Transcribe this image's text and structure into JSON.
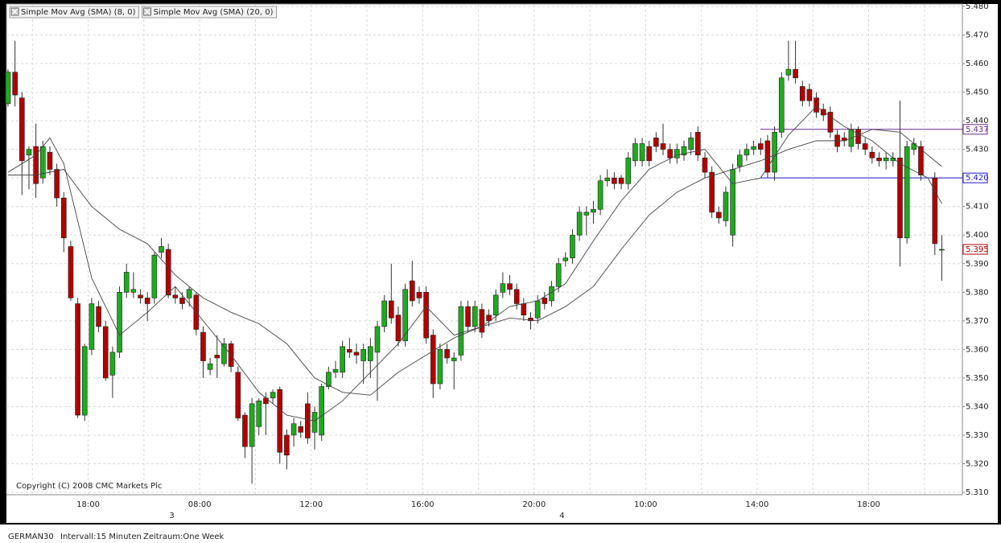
{
  "chart_data": {
    "type": "candlestick",
    "categories": [
      null,
      null,
      null,
      null,
      null,
      null,
      null,
      null,
      null,
      null,
      null,
      null,
      "18:00",
      null,
      null,
      null,
      null,
      null,
      null,
      null,
      null,
      null,
      null,
      null,
      null,
      null,
      null,
      null,
      "08:00",
      null,
      null,
      null,
      null,
      null,
      null,
      null,
      null,
      null,
      null,
      null,
      null,
      null,
      null,
      null,
      "12:00",
      null,
      null,
      null,
      null,
      null,
      null,
      null,
      null,
      null,
      null,
      null,
      null,
      null,
      null,
      null,
      "16:00",
      null,
      null,
      null,
      null,
      null,
      null,
      null,
      null,
      null,
      null,
      null,
      null,
      null,
      null,
      null,
      "20:00",
      null,
      null,
      null,
      null,
      null,
      null,
      null,
      null,
      null,
      null,
      null,
      null,
      null,
      null,
      null,
      "10:00",
      null,
      null,
      null,
      null,
      null,
      null,
      null,
      null,
      null,
      null,
      null,
      null,
      null,
      null,
      null,
      "14:00",
      null,
      null,
      null,
      null,
      null,
      null,
      null,
      null,
      null,
      null,
      null,
      null,
      null,
      null,
      null,
      "18:00",
      null,
      null,
      null,
      null,
      null,
      null,
      null,
      null,
      null,
      null
    ],
    "day_labels": [
      null,
      null,
      null,
      null,
      null,
      null,
      null,
      null,
      null,
      null,
      null,
      null,
      null,
      null,
      null,
      null,
      null,
      null,
      null,
      null,
      null,
      null,
      null,
      null,
      "3",
      null,
      null,
      null,
      null,
      null,
      null,
      null,
      null,
      null,
      null,
      null,
      null,
      null,
      null,
      null,
      null,
      null,
      null,
      null,
      null,
      null,
      null,
      null,
      null,
      null,
      null,
      null,
      null,
      null,
      null,
      null,
      null,
      null,
      null,
      null,
      null,
      null,
      null,
      null,
      null,
      null,
      null,
      null,
      null,
      null,
      null,
      null,
      null,
      null,
      null,
      null,
      null,
      null,
      null,
      null,
      "4",
      null,
      null,
      null,
      null,
      null,
      null,
      null,
      null,
      null,
      null,
      null,
      null,
      null,
      null,
      null,
      null,
      null,
      null,
      null,
      null,
      null,
      null,
      null,
      null,
      null,
      null,
      null,
      null,
      null,
      null,
      null,
      null,
      null,
      null,
      null,
      null,
      null,
      null,
      null,
      null,
      null,
      null,
      null,
      null,
      null,
      null,
      null,
      null,
      null,
      null,
      null,
      null,
      null
    ],
    "open": [
      5.446,
      5.457,
      5.448,
      5.428,
      5.431,
      5.42,
      5.429,
      5.423,
      5.413,
      5.396,
      5.376,
      5.337,
      5.36,
      5.375,
      5.368,
      5.351,
      5.359,
      5.38,
      5.38,
      5.379,
      5.378,
      5.378,
      5.394,
      5.395,
      5.379,
      5.378,
      5.378,
      5.379,
      5.366,
      5.353,
      5.358,
      5.355,
      5.362,
      5.352,
      5.337,
      5.326,
      5.333,
      5.343,
      5.343,
      5.346,
      5.33,
      5.33,
      5.333,
      5.341,
      5.331,
      5.33,
      5.347,
      5.352,
      5.352,
      5.36,
      5.359,
      5.356,
      5.356,
      5.359,
      5.368,
      5.377,
      5.372,
      5.363,
      5.384,
      5.38,
      5.38,
      5.365,
      5.348,
      5.36,
      5.356,
      5.358,
      5.375,
      5.368,
      5.374,
      5.372,
      5.372,
      5.38,
      5.383,
      5.381,
      5.376,
      5.371,
      5.371,
      5.378,
      5.377,
      5.382,
      5.391,
      5.392,
      5.4,
      5.407,
      5.408,
      5.409,
      5.419,
      5.42,
      5.42,
      5.418,
      5.426,
      5.426,
      5.431,
      5.434,
      5.432,
      5.43,
      5.427,
      5.428,
      5.43,
      5.436,
      5.427,
      5.422,
      5.408,
      5.405,
      5.4,
      5.424,
      5.428,
      5.43,
      5.432,
      5.433,
      5.422,
      5.436,
      5.456,
      5.458,
      5.452,
      5.451,
      5.448,
      5.444,
      5.443,
      5.435,
      5.434,
      5.431,
      5.437,
      5.432,
      5.429,
      5.427,
      5.426,
      5.426,
      5.427,
      5.399,
      5.43,
      5.431,
      null,
      5.42,
      5.395
    ],
    "high": [
      5.458,
      5.468,
      5.45,
      5.431,
      5.439,
      5.433,
      5.431,
      5.425,
      5.415,
      5.398,
      5.378,
      5.362,
      5.378,
      5.377,
      5.37,
      5.361,
      5.382,
      5.39,
      5.387,
      5.381,
      5.38,
      5.394,
      5.399,
      5.397,
      5.382,
      5.38,
      5.382,
      5.38,
      5.368,
      5.357,
      5.365,
      5.364,
      5.363,
      5.354,
      5.338,
      5.343,
      5.343,
      5.345,
      5.346,
      5.347,
      5.332,
      5.336,
      5.335,
      5.345,
      5.34,
      5.348,
      5.354,
      5.356,
      5.363,
      5.364,
      5.362,
      5.362,
      5.364,
      5.37,
      5.379,
      5.39,
      5.375,
      5.383,
      5.391,
      5.382,
      5.382,
      5.367,
      5.362,
      5.362,
      5.359,
      5.377,
      5.377,
      5.377,
      5.376,
      5.374,
      5.381,
      5.387,
      5.386,
      5.383,
      5.378,
      5.373,
      5.379,
      5.38,
      5.384,
      5.392,
      5.394,
      5.402,
      5.41,
      5.41,
      5.412,
      5.421,
      5.423,
      5.422,
      5.421,
      5.429,
      5.434,
      5.434,
      5.433,
      5.436,
      5.439,
      5.432,
      5.432,
      5.433,
      5.436,
      5.438,
      5.429,
      5.424,
      5.41,
      5.417,
      5.425,
      5.43,
      5.432,
      5.433,
      5.434,
      5.435,
      5.438,
      5.457,
      5.468,
      5.468,
      5.454,
      5.453,
      5.45,
      5.446,
      5.445,
      5.437,
      5.436,
      5.439,
      5.438,
      5.434,
      5.431,
      5.429,
      5.429,
      5.429,
      5.447,
      5.433,
      5.434,
      5.433,
      null,
      5.422,
      5.4
    ],
    "low": [
      5.445,
      5.445,
      5.414,
      5.416,
      5.413,
      5.418,
      5.421,
      5.41,
      5.394,
      5.377,
      5.336,
      5.335,
      5.358,
      5.366,
      5.349,
      5.343,
      5.357,
      5.378,
      5.378,
      5.376,
      5.37,
      5.376,
      5.392,
      5.378,
      5.376,
      5.374,
      5.375,
      5.365,
      5.35,
      5.351,
      5.35,
      5.354,
      5.352,
      5.335,
      5.322,
      5.313,
      5.33,
      5.33,
      5.341,
      5.32,
      5.318,
      5.326,
      5.329,
      5.327,
      5.325,
      5.328,
      5.346,
      5.35,
      5.35,
      5.357,
      5.355,
      5.348,
      5.35,
      5.342,
      5.366,
      5.369,
      5.361,
      5.361,
      5.375,
      5.376,
      5.362,
      5.343,
      5.346,
      5.355,
      5.346,
      5.356,
      5.366,
      5.366,
      5.364,
      5.368,
      5.37,
      5.378,
      5.379,
      5.374,
      5.37,
      5.367,
      5.369,
      5.374,
      5.375,
      5.38,
      5.389,
      5.39,
      5.398,
      5.4,
      5.404,
      5.407,
      5.417,
      5.416,
      5.416,
      5.416,
      5.424,
      5.424,
      5.424,
      5.429,
      5.428,
      5.425,
      5.425,
      5.426,
      5.428,
      5.426,
      5.42,
      5.406,
      5.404,
      5.403,
      5.396,
      5.422,
      5.426,
      5.428,
      5.428,
      5.42,
      5.419,
      5.434,
      5.454,
      5.453,
      5.445,
      5.445,
      5.441,
      5.44,
      5.434,
      5.429,
      5.431,
      5.429,
      5.43,
      5.428,
      5.425,
      5.424,
      5.423,
      5.424,
      5.389,
      5.397,
      5.428,
      5.419,
      null,
      5.393,
      5.384
    ],
    "close": [
      5.457,
      5.449,
      5.426,
      5.43,
      5.418,
      5.431,
      5.423,
      5.413,
      5.399,
      5.378,
      5.337,
      5.361,
      5.376,
      5.368,
      5.35,
      5.359,
      5.38,
      5.387,
      5.381,
      5.378,
      5.376,
      5.393,
      5.396,
      5.379,
      5.378,
      5.376,
      5.381,
      5.367,
      5.356,
      5.355,
      5.357,
      5.362,
      5.354,
      5.336,
      5.326,
      5.341,
      5.342,
      5.341,
      5.345,
      5.324,
      5.323,
      5.334,
      5.331,
      5.329,
      5.338,
      5.347,
      5.352,
      5.353,
      5.361,
      5.359,
      5.358,
      5.36,
      5.361,
      5.368,
      5.377,
      5.371,
      5.363,
      5.381,
      5.377,
      5.378,
      5.364,
      5.348,
      5.36,
      5.357,
      5.357,
      5.375,
      5.368,
      5.375,
      5.366,
      5.37,
      5.379,
      5.383,
      5.381,
      5.376,
      5.372,
      5.37,
      5.377,
      5.376,
      5.382,
      5.39,
      5.392,
      5.4,
      5.408,
      5.408,
      5.409,
      5.419,
      5.42,
      5.418,
      5.418,
      5.427,
      5.432,
      5.432,
      5.426,
      5.431,
      5.43,
      5.427,
      5.43,
      5.431,
      5.434,
      5.428,
      5.422,
      5.408,
      5.406,
      5.415,
      5.423,
      5.428,
      5.43,
      5.431,
      5.43,
      5.422,
      5.436,
      5.455,
      5.458,
      5.455,
      5.447,
      5.447,
      5.443,
      5.442,
      5.436,
      5.431,
      5.433,
      5.437,
      5.432,
      5.43,
      5.427,
      5.426,
      5.427,
      5.427,
      5.399,
      5.431,
      5.432,
      5.421,
      null,
      5.397,
      5.395
    ],
    "up_color": "#1faa1f",
    "down_color": "#b30000",
    "series": [
      {
        "name": "Simple Mov Avg (SMA) (8, 0)",
        "color": "#444444",
        "x": [
          0,
          4,
          6,
          8,
          12,
          16,
          20,
          24,
          28,
          32,
          36,
          40,
          44,
          48,
          52,
          56,
          60,
          64,
          68,
          72,
          76,
          80,
          84,
          88,
          92,
          96,
          100,
          104,
          108,
          112,
          116,
          120,
          124,
          128,
          132,
          134
        ],
        "values": [
          5.422,
          5.428,
          5.434,
          5.425,
          5.385,
          5.365,
          5.373,
          5.382,
          5.37,
          5.358,
          5.345,
          5.337,
          5.335,
          5.342,
          5.352,
          5.362,
          5.375,
          5.365,
          5.368,
          5.375,
          5.377,
          5.383,
          5.398,
          5.412,
          5.423,
          5.428,
          5.43,
          5.418,
          5.42,
          5.435,
          5.445,
          5.438,
          5.433,
          5.425,
          5.42,
          5.411
        ]
      },
      {
        "name": "Simple Mov Avg (SMA) (20, 0)",
        "color": "#444444",
        "x": [
          0,
          4,
          8,
          12,
          16,
          20,
          24,
          28,
          32,
          36,
          40,
          44,
          48,
          52,
          56,
          60,
          64,
          68,
          72,
          76,
          80,
          84,
          88,
          92,
          96,
          100,
          104,
          108,
          112,
          116,
          120,
          124,
          128,
          132,
          134
        ],
        "values": [
          5.421,
          5.421,
          5.423,
          5.41,
          5.402,
          5.397,
          5.386,
          5.378,
          5.373,
          5.369,
          5.362,
          5.35,
          5.345,
          5.344,
          5.352,
          5.358,
          5.364,
          5.368,
          5.371,
          5.37,
          5.375,
          5.382,
          5.395,
          5.407,
          5.415,
          5.42,
          5.423,
          5.426,
          5.43,
          5.433,
          5.433,
          5.437,
          5.436,
          5.428,
          5.424
        ]
      }
    ],
    "price_markers": [
      {
        "value": 5.437,
        "label": "5.437",
        "color": "#6a2c91",
        "line": true
      },
      {
        "value": 5.42,
        "label": "5.420",
        "color": "#1a1ac8",
        "line": true
      },
      {
        "value": 5.395,
        "label": "5.395",
        "color": "#b30000",
        "line": false
      }
    ],
    "ylim": [
      5.31,
      5.48
    ],
    "yticks": [
      {
        "value": 5.31,
        "label": "5.310"
      },
      {
        "value": 5.32,
        "label": "5.320"
      },
      {
        "value": 5.33,
        "label": "5.330"
      },
      {
        "value": 5.34,
        "label": "5.340"
      },
      {
        "value": 5.35,
        "label": "5.350"
      },
      {
        "value": 5.36,
        "label": "5.360"
      },
      {
        "value": 5.37,
        "label": "5.370"
      },
      {
        "value": 5.38,
        "label": "5.380"
      },
      {
        "value": 5.39,
        "label": "5.390"
      },
      {
        "value": 5.4,
        "label": "5.400"
      },
      {
        "value": 5.41,
        "label": "5.410"
      },
      {
        "value": 5.42,
        "label": "5.420"
      },
      {
        "value": 5.43,
        "label": "5.430"
      },
      {
        "value": 5.44,
        "label": "5.440"
      },
      {
        "value": 5.45,
        "label": "5.450"
      },
      {
        "value": 5.46,
        "label": "5.460"
      },
      {
        "value": 5.47,
        "label": "5.470"
      },
      {
        "value": 5.48,
        "label": "5.480"
      }
    ],
    "grid": true,
    "annotation": "Copyright (C) 2008 CMC Markets Plc"
  },
  "footer": {
    "symbol": "GERMAN30",
    "interval": "Intervall:15 Minuten",
    "period": "Zeitraum:One Week"
  }
}
